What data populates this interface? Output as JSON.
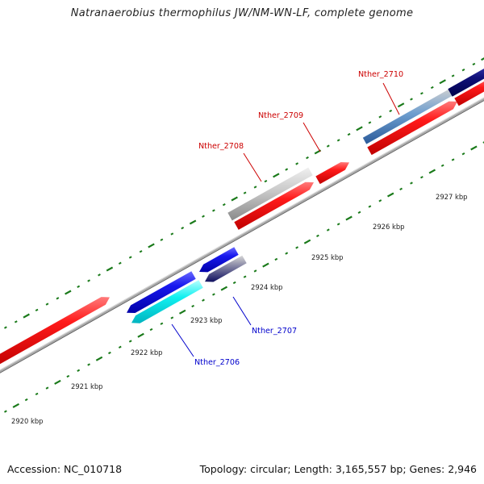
{
  "title": "Natranaerobius thermophilus JW/NM-WN-LF, complete genome",
  "footer": {
    "accession": "Accession: NC_010718",
    "summary": "Topology: circular; Length: 3,165,557 bp; Genes: 2,946"
  },
  "colors": {
    "forward_gene": "#ff0000",
    "reverse_gene": "#1010ee",
    "backbone": "#8a8a8a",
    "tick": "#1a7a1a",
    "label_forward": "#cc0000",
    "label_reverse": "#0000cc"
  },
  "scale": {
    "unit": "kbp",
    "ticks": [
      {
        "value": 2920,
        "label": "2920 kbp"
      },
      {
        "value": 2921,
        "label": "2921 kbp"
      },
      {
        "value": 2922,
        "label": "2922 kbp"
      },
      {
        "value": 2923,
        "label": "2923 kbp"
      },
      {
        "value": 2924,
        "label": "2924 kbp"
      },
      {
        "value": 2925,
        "label": "2925 kbp"
      },
      {
        "value": 2926,
        "label": "2926 kbp"
      },
      {
        "value": 2927,
        "label": "2927 kbp"
      }
    ]
  },
  "genes": [
    {
      "label": "Nther_2706",
      "strand": "reverse",
      "fill": "cyan"
    },
    {
      "label": "Nther_2707",
      "strand": "reverse",
      "fill": "navy-gray"
    },
    {
      "label": "Nther_2708",
      "strand": "forward",
      "fill": "gray"
    },
    {
      "label": "Nther_2709",
      "strand": "forward",
      "fill": "red"
    },
    {
      "label": "Nther_2710",
      "strand": "forward",
      "fill": "steelblue"
    }
  ]
}
